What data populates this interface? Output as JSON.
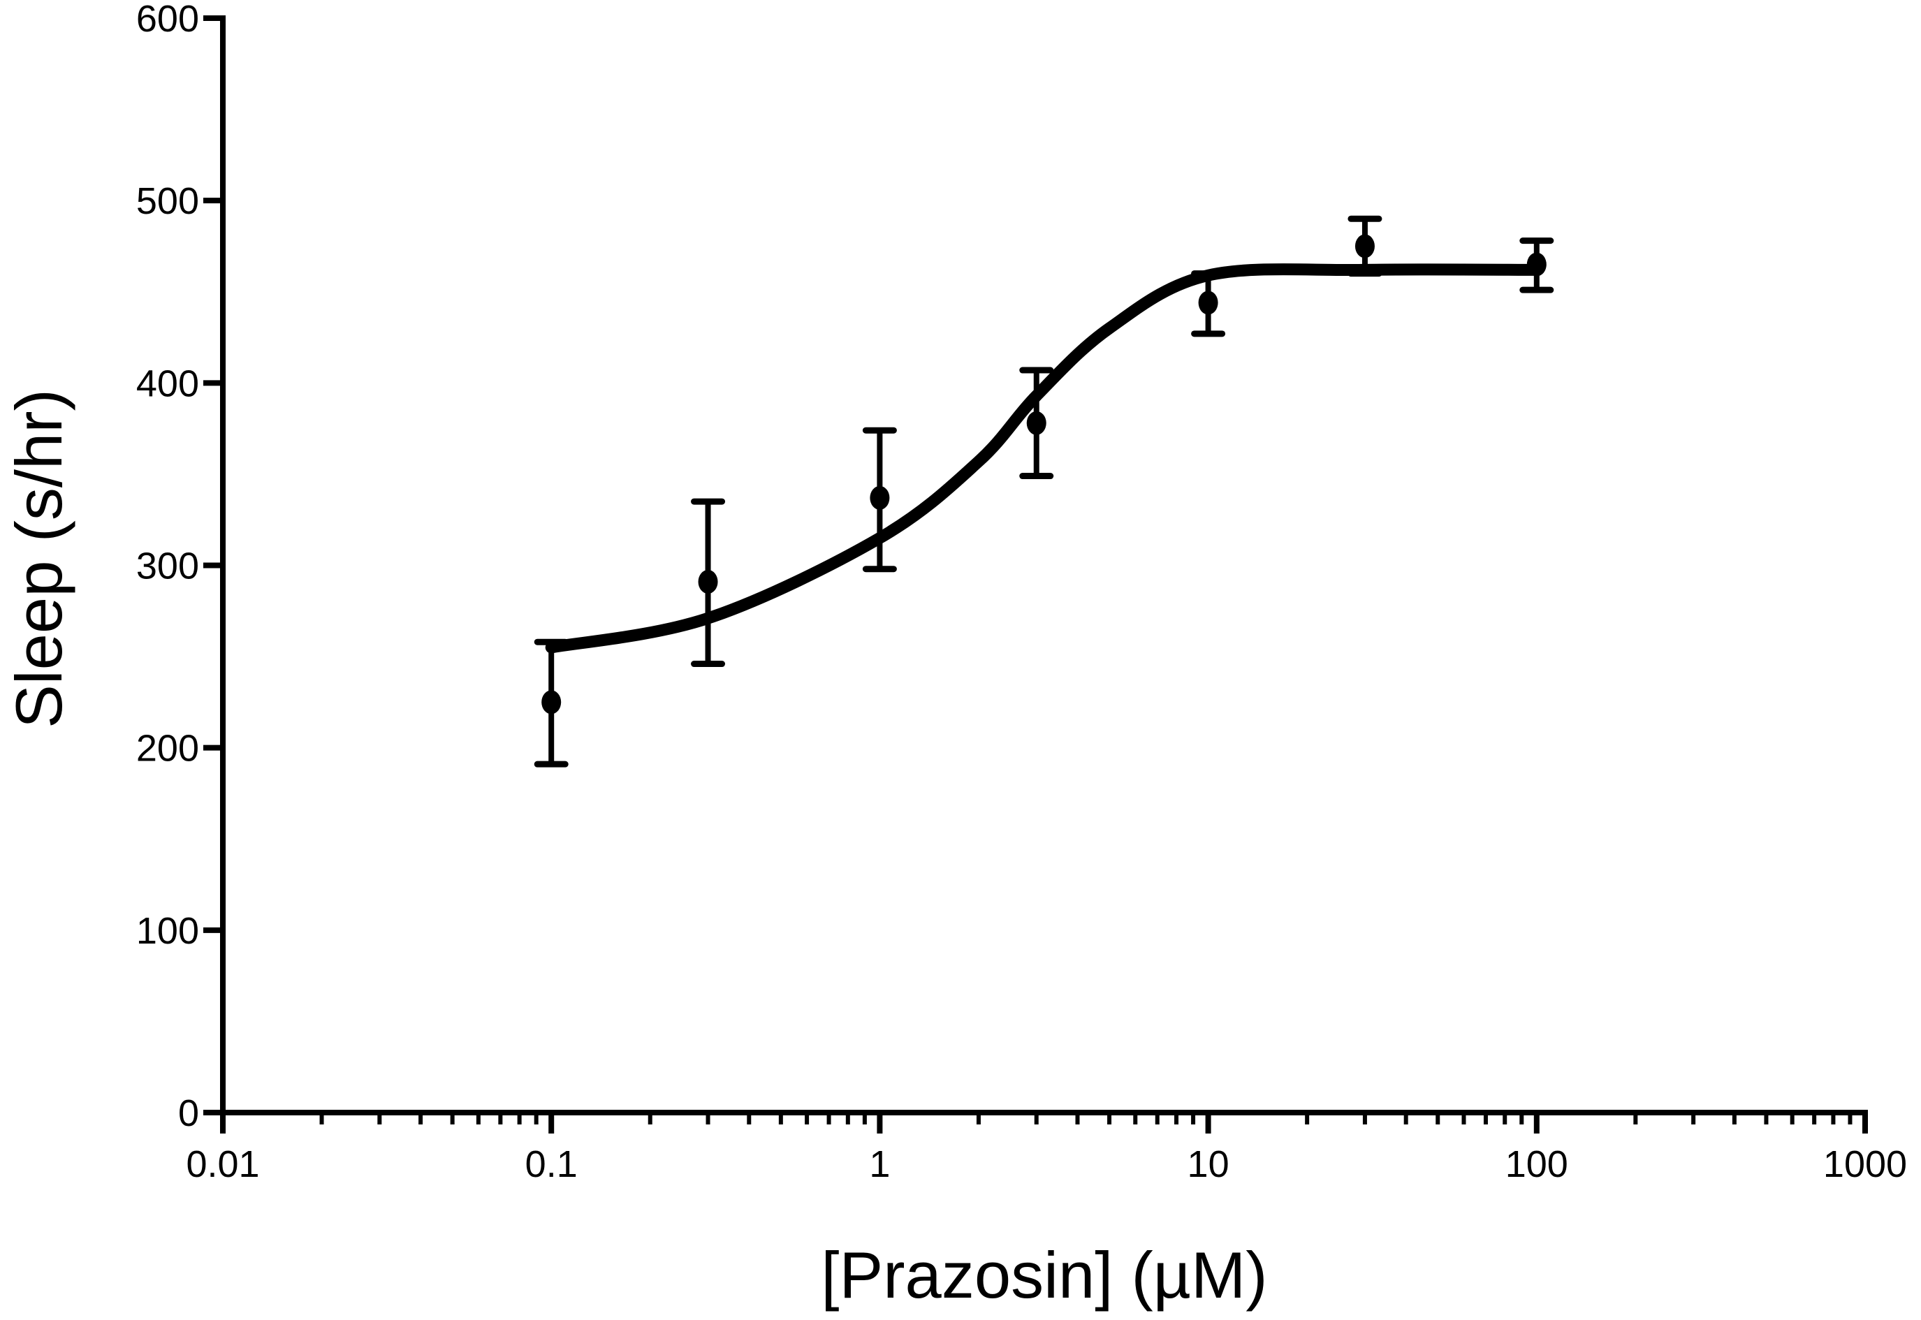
{
  "chart_data": {
    "type": "scatter",
    "title": "",
    "xlabel": "[Prazosin] (µM)",
    "ylabel": "Sleep (s/hr)",
    "x_scale": "log",
    "xlim": [
      0.01,
      1000
    ],
    "ylim": [
      0,
      600
    ],
    "x_ticks": [
      "0.01",
      "0.1",
      "1",
      "10",
      "100",
      "1000"
    ],
    "y_ticks": [
      "0",
      "100",
      "200",
      "300",
      "400",
      "500",
      "600"
    ],
    "grid": false,
    "legend": "none",
    "color": "#000000",
    "points": [
      {
        "x": 0.1,
        "y": 225,
        "err_low": 191,
        "err_high": 258
      },
      {
        "x": 0.3,
        "y": 291,
        "err_low": 246,
        "err_high": 335
      },
      {
        "x": 1,
        "y": 337,
        "err_low": 298,
        "err_high": 374
      },
      {
        "x": 3,
        "y": 378,
        "err_low": 349,
        "err_high": 407
      },
      {
        "x": 10,
        "y": 444,
        "err_low": 427,
        "err_high": 460
      },
      {
        "x": 30,
        "y": 475,
        "err_low": 460,
        "err_high": 490
      },
      {
        "x": 100,
        "y": 465,
        "err_low": 451,
        "err_high": 478
      }
    ],
    "fit_curve": {
      "x": [
        0.1,
        0.3,
        1,
        2,
        3,
        5,
        10,
        30,
        100
      ],
      "y": [
        255,
        271,
        315,
        357,
        393,
        430,
        459,
        462,
        462
      ]
    }
  }
}
